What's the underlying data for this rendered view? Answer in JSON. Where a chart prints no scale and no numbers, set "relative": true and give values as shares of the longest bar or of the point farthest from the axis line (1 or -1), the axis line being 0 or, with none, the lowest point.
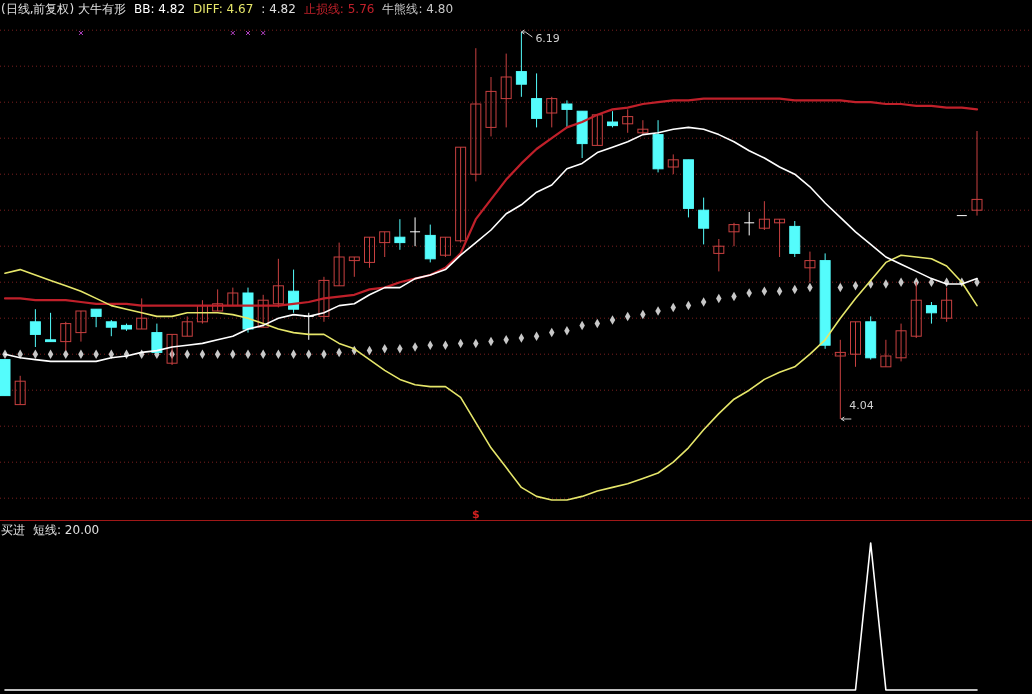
{
  "chart_data": [
    {
      "type": "candlestick",
      "title": "(日线,前复权) 大牛有形",
      "categories": [
        null,
        null,
        null,
        null,
        null,
        null,
        null,
        null,
        null,
        null,
        null,
        null,
        null,
        null,
        null,
        null,
        null,
        null,
        null,
        null,
        null,
        null,
        null,
        null,
        null,
        null,
        null,
        null,
        null,
        null,
        null,
        null,
        null,
        null,
        null,
        null,
        null,
        null,
        null,
        null,
        null,
        null,
        null,
        null,
        null,
        null,
        null,
        null,
        null,
        null,
        null,
        null,
        null,
        null,
        null,
        null,
        null,
        null,
        null,
        null,
        null,
        null,
        null,
        null,
        null
      ],
      "ohlc": [
        [
          4.37,
          4.37,
          4.17,
          4.17
        ],
        [
          4.12,
          4.28,
          4.12,
          4.25
        ],
        [
          4.58,
          4.65,
          4.44,
          4.51
        ],
        [
          4.48,
          4.63,
          4.47,
          4.47
        ],
        [
          4.47,
          4.58,
          4.42,
          4.57
        ],
        [
          4.52,
          4.64,
          4.47,
          4.64
        ],
        [
          4.65,
          4.65,
          4.55,
          4.61
        ],
        [
          4.58,
          4.59,
          4.5,
          4.55
        ],
        [
          4.56,
          4.57,
          4.53,
          4.54
        ],
        [
          4.54,
          4.71,
          4.54,
          4.6
        ],
        [
          4.52,
          4.57,
          4.41,
          4.41
        ],
        [
          4.35,
          4.51,
          4.34,
          4.51
        ],
        [
          4.5,
          4.61,
          4.5,
          4.58
        ],
        [
          4.58,
          4.7,
          4.57,
          4.67
        ],
        [
          4.64,
          4.76,
          4.64,
          4.68
        ],
        [
          4.67,
          4.77,
          4.67,
          4.74
        ],
        [
          4.74,
          4.77,
          4.52,
          4.54
        ],
        [
          4.55,
          4.73,
          4.55,
          4.7
        ],
        [
          4.68,
          4.93,
          4.66,
          4.78
        ],
        [
          4.75,
          4.87,
          4.63,
          4.65
        ],
        [
          4.61,
          4.63,
          4.48,
          4.61
        ],
        [
          4.61,
          4.83,
          4.58,
          4.81
        ],
        [
          4.78,
          5.02,
          4.78,
          4.94
        ],
        [
          4.92,
          4.94,
          4.83,
          4.94
        ],
        [
          4.91,
          5.05,
          4.88,
          5.05
        ],
        [
          5.02,
          5.08,
          4.94,
          5.08
        ],
        [
          5.05,
          5.15,
          4.98,
          5.02
        ],
        [
          5.08,
          5.16,
          5.0,
          5.08
        ],
        [
          5.06,
          5.12,
          4.91,
          4.93
        ],
        [
          4.95,
          5.05,
          4.94,
          5.05
        ],
        [
          5.03,
          5.55,
          5.02,
          5.55
        ],
        [
          5.4,
          6.1,
          5.36,
          5.79
        ],
        [
          5.66,
          5.94,
          5.61,
          5.86
        ],
        [
          5.82,
          6.07,
          5.66,
          5.94
        ],
        [
          5.97,
          6.19,
          5.83,
          5.9
        ],
        [
          5.82,
          5.96,
          5.66,
          5.71
        ],
        [
          5.74,
          5.83,
          5.66,
          5.82
        ],
        [
          5.79,
          5.81,
          5.66,
          5.76
        ],
        [
          5.75,
          5.75,
          5.49,
          5.57
        ],
        [
          5.56,
          5.73,
          5.56,
          5.73
        ],
        [
          5.69,
          5.75,
          5.66,
          5.67
        ],
        [
          5.68,
          5.76,
          5.63,
          5.72
        ],
        [
          5.63,
          5.7,
          5.62,
          5.65
        ],
        [
          5.62,
          5.7,
          5.41,
          5.43
        ],
        [
          5.44,
          5.51,
          5.4,
          5.48
        ],
        [
          5.48,
          5.48,
          5.16,
          5.21
        ],
        [
          5.2,
          5.27,
          5.01,
          5.1
        ],
        [
          4.96,
          5.04,
          4.86,
          5.0
        ],
        [
          5.08,
          5.13,
          5.0,
          5.12
        ],
        [
          5.13,
          5.19,
          5.06,
          5.13
        ],
        [
          5.1,
          5.25,
          5.09,
          5.15
        ],
        [
          5.13,
          5.15,
          4.94,
          5.15
        ],
        [
          5.11,
          5.14,
          4.94,
          4.96
        ],
        [
          4.88,
          4.97,
          4.8,
          4.92
        ],
        [
          4.92,
          4.96,
          4.43,
          4.45
        ],
        [
          4.39,
          4.48,
          4.04,
          4.41
        ],
        [
          4.4,
          4.58,
          4.33,
          4.58
        ],
        [
          4.58,
          4.61,
          4.37,
          4.38
        ],
        [
          4.33,
          4.48,
          4.33,
          4.39
        ],
        [
          4.38,
          4.57,
          4.36,
          4.53
        ],
        [
          4.5,
          4.8,
          4.49,
          4.7
        ],
        [
          4.67,
          4.69,
          4.57,
          4.63
        ],
        [
          4.6,
          4.77,
          4.58,
          4.7
        ],
        [
          5.17,
          5.17,
          5.17,
          5.17
        ],
        [
          5.2,
          5.64,
          5.17,
          5.26
        ]
      ],
      "colors": [
        "#54fcfc",
        "#c84040",
        "#54fcfc",
        "#54fcfc",
        "#c84040",
        "#c84040",
        "#54fcfc",
        "#54fcfc",
        "#54fcfc",
        "#c84040",
        "#54fcfc",
        "#c84040",
        "#c84040",
        "#c84040",
        "#c84040",
        "#c84040",
        "#54fcfc",
        "#c84040",
        "#c84040",
        "#54fcfc",
        "#ffffff",
        "#c84040",
        "#c84040",
        "#c84040",
        "#c84040",
        "#c84040",
        "#54fcfc",
        "#ffffff",
        "#54fcfc",
        "#c84040",
        "#c84040",
        "#c84040",
        "#c84040",
        "#c84040",
        "#54fcfc",
        "#54fcfc",
        "#c84040",
        "#54fcfc",
        "#54fcfc",
        "#c84040",
        "#54fcfc",
        "#c84040",
        "#c84040",
        "#54fcfc",
        "#c84040",
        "#54fcfc",
        "#54fcfc",
        "#c84040",
        "#c84040",
        "#ffffff",
        "#c84040",
        "#c84040",
        "#54fcfc",
        "#c84040",
        "#54fcfc",
        "#c84040",
        "#c84040",
        "#54fcfc",
        "#c84040",
        "#c84040",
        "#c84040",
        "#54fcfc",
        "#c84040",
        "#ffffff",
        "#c84040"
      ],
      "series": [
        {
          "name": "BB: 4.82",
          "type": "line",
          "color": "#ffffff",
          "values": [
            4.4,
            4.38,
            4.37,
            4.36,
            4.36,
            4.36,
            4.36,
            4.38,
            4.39,
            4.41,
            4.42,
            4.44,
            4.45,
            4.46,
            4.48,
            4.5,
            4.54,
            4.56,
            4.6,
            4.62,
            4.61,
            4.63,
            4.67,
            4.68,
            4.73,
            4.77,
            4.77,
            4.82,
            4.84,
            4.87,
            4.95,
            5.02,
            5.09,
            5.18,
            5.23,
            5.3,
            5.34,
            5.43,
            5.46,
            5.52,
            5.55,
            5.58,
            5.62,
            5.63,
            5.65,
            5.66,
            5.65,
            5.62,
            5.58,
            5.53,
            5.49,
            5.44,
            5.4,
            5.33,
            5.24,
            5.16,
            5.08,
            5.01,
            4.94,
            4.9,
            4.86,
            4.82,
            4.79,
            4.79,
            4.82
          ]
        },
        {
          "name": "DIFF: 4.67",
          "type": "line",
          "color": "#e6e66a",
          "values": [
            4.85,
            4.87,
            4.84,
            4.81,
            4.78,
            4.75,
            4.71,
            4.67,
            4.65,
            4.63,
            4.61,
            4.61,
            4.63,
            4.63,
            4.63,
            4.62,
            4.6,
            4.57,
            4.54,
            4.52,
            4.51,
            4.51,
            4.46,
            4.43,
            4.37,
            4.31,
            4.26,
            4.23,
            4.22,
            4.22,
            4.16,
            4.02,
            3.88,
            3.77,
            3.66,
            3.61,
            3.59,
            3.59,
            3.61,
            3.64,
            3.66,
            3.68,
            3.71,
            3.74,
            3.8,
            3.88,
            3.98,
            4.07,
            4.15,
            4.2,
            4.26,
            4.3,
            4.33,
            4.4,
            4.48,
            4.6,
            4.71,
            4.81,
            4.91,
            4.95,
            4.94,
            4.93,
            4.89,
            4.8,
            4.67
          ]
        },
        {
          "name": "止损线: 5.76",
          "type": "line",
          "color": "#c0202a",
          "values": [
            4.71,
            4.71,
            4.7,
            4.7,
            4.7,
            4.69,
            4.68,
            4.68,
            4.68,
            4.67,
            4.67,
            4.67,
            4.67,
            4.67,
            4.67,
            4.67,
            4.67,
            4.67,
            4.67,
            4.68,
            4.69,
            4.71,
            4.72,
            4.73,
            4.76,
            4.77,
            4.8,
            4.82,
            4.84,
            4.88,
            4.96,
            5.15,
            5.26,
            5.37,
            5.46,
            5.54,
            5.6,
            5.66,
            5.69,
            5.73,
            5.76,
            5.77,
            5.79,
            5.8,
            5.81,
            5.81,
            5.82,
            5.82,
            5.82,
            5.82,
            5.82,
            5.82,
            5.81,
            5.81,
            5.81,
            5.81,
            5.8,
            5.8,
            5.79,
            5.79,
            5.78,
            5.78,
            5.77,
            5.77,
            5.76
          ]
        },
        {
          "name": "牛熊线: 4.80",
          "type": "scatter",
          "marker": "diamond",
          "color": "#c8c8c8",
          "values": [
            4.4,
            4.4,
            4.4,
            4.4,
            4.4,
            4.4,
            4.4,
            4.4,
            4.4,
            4.4,
            4.4,
            4.4,
            4.4,
            4.4,
            4.4,
            4.4,
            4.4,
            4.4,
            4.4,
            4.4,
            4.4,
            4.4,
            4.41,
            4.42,
            4.42,
            4.43,
            4.43,
            4.44,
            4.45,
            4.45,
            4.46,
            4.46,
            4.47,
            4.48,
            4.49,
            4.5,
            4.52,
            4.53,
            4.56,
            4.57,
            4.59,
            4.61,
            4.62,
            4.64,
            4.66,
            4.67,
            4.69,
            4.71,
            4.72,
            4.74,
            4.75,
            4.75,
            4.76,
            4.77,
            null,
            4.77,
            4.78,
            4.79,
            4.79,
            4.8,
            4.8,
            4.8,
            4.8,
            4.8,
            4.8
          ]
        }
      ],
      "yticks": [
        {
          "value": 3.6,
          "label": null
        },
        {
          "value": 3.8,
          "label": null
        },
        {
          "value": 4.0,
          "label": null
        },
        {
          "value": 4.2,
          "label": null
        },
        {
          "value": 4.4,
          "label": null
        },
        {
          "value": 4.6,
          "label": null
        },
        {
          "value": 4.8,
          "label": null
        },
        {
          "value": 5.0,
          "label": null
        },
        {
          "value": 5.2,
          "label": null
        },
        {
          "value": 5.4,
          "label": null
        },
        {
          "value": 5.6,
          "label": null
        },
        {
          "value": 5.8,
          "label": null
        },
        {
          "value": 6.0,
          "label": null
        },
        {
          "value": 6.2,
          "label": null
        }
      ],
      "grid": "y",
      "annotations": [
        ": 4.82",
        "6.19",
        "4.04",
        "$"
      ]
    },
    {
      "type": "line",
      "title": "买进",
      "relative": true,
      "categories": [
        null,
        null,
        null,
        null,
        null,
        null,
        null,
        null,
        null,
        null,
        null,
        null,
        null,
        null,
        null,
        null,
        null,
        null,
        null,
        null,
        null,
        null,
        null,
        null,
        null,
        null,
        null,
        null,
        null,
        null,
        null,
        null,
        null,
        null,
        null,
        null,
        null,
        null,
        null,
        null,
        null,
        null,
        null,
        null,
        null,
        null,
        null,
        null,
        null,
        null,
        null,
        null,
        null,
        null,
        null,
        null,
        null,
        null,
        null,
        null,
        null,
        null,
        null,
        null,
        null
      ],
      "series": [
        {
          "color": "#ffffff",
          "values": [
            0,
            0,
            0,
            0,
            0,
            0,
            0,
            0,
            0,
            0,
            0,
            0,
            0,
            0,
            0,
            0,
            0,
            0,
            0,
            0,
            0,
            0,
            0,
            0,
            0,
            0,
            0,
            0,
            0,
            0,
            0,
            0,
            0,
            0,
            0,
            0,
            0,
            0,
            0,
            0,
            0,
            0,
            0,
            0,
            0,
            0,
            0,
            0,
            0,
            0,
            0,
            0,
            0,
            0,
            0,
            0,
            0,
            1,
            0,
            0,
            0,
            0,
            0,
            0,
            0
          ]
        }
      ],
      "annotations": [
        "短线: 20.00"
      ]
    }
  ]
}
